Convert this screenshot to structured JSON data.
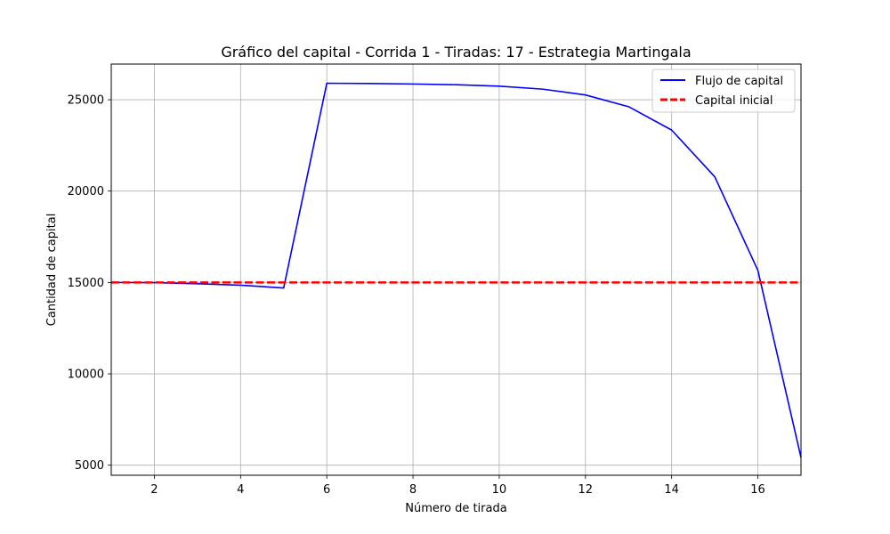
{
  "chart_data": {
    "type": "line",
    "title": "Gráfico del capital - Corrida 1 - Tiradas: 17 - Estrategia Martingala",
    "xlabel": "Número de tirada",
    "ylabel": "Cantidad de capital",
    "xlim": [
      1,
      17
    ],
    "ylim": [
      4450,
      26950
    ],
    "xticks": [
      2,
      4,
      6,
      8,
      10,
      12,
      14,
      16
    ],
    "yticks": [
      5000,
      10000,
      15000,
      20000,
      25000
    ],
    "grid": true,
    "legend_position": "top-right",
    "series": [
      {
        "name": "Flujo de capital",
        "color": "#0000ff",
        "style": "solid",
        "x": [
          1,
          2,
          3,
          4,
          5,
          6,
          7,
          8,
          9,
          10,
          11,
          12,
          13,
          14,
          15,
          16,
          17
        ],
        "y": [
          15000,
          14990,
          14930,
          14850,
          14700,
          25900,
          25890,
          25860,
          25820,
          25740,
          25580,
          25260,
          24620,
          23340,
          20780,
          15660,
          5420
        ]
      },
      {
        "name": "Capital inicial",
        "color": "#ff0000",
        "style": "dashed",
        "x": [
          1,
          17
        ],
        "y": [
          15000,
          15000
        ]
      }
    ]
  }
}
